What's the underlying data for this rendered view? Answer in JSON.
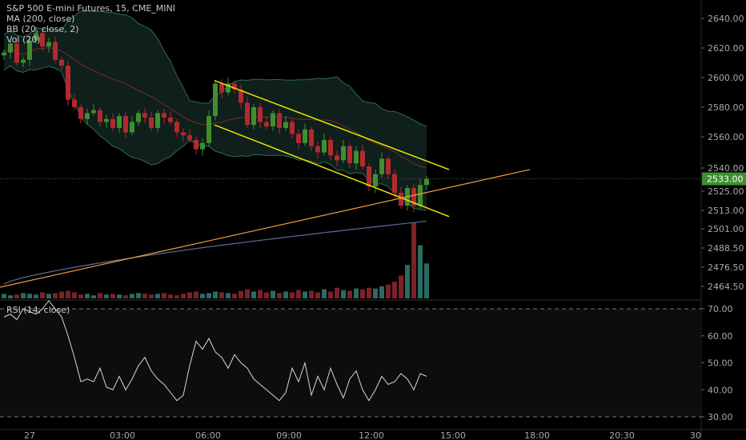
{
  "legend": {
    "line1": "S&P 500 E-mini Futures, 15, CME_MINI",
    "line2": "MA (200, close)",
    "line3": "BB (20, close, 2)",
    "line4": "Vol (20)"
  },
  "rsi_legend": "RSI (14, close)",
  "current_price_label": "2533.00",
  "colors": {
    "up": "#3f8f2f",
    "down": "#b22a2e",
    "vol_up": "#2a6b62",
    "vol_down": "#7a2228",
    "trendline": "#e6e600",
    "support": "#f0a040",
    "ma": "#5c6e99",
    "bb_basis": "#7a2b2b",
    "bb_band": "#2f6b5a",
    "price_tag_bg": "#3f8f2f"
  },
  "chart_data": [
    {
      "type": "candlestick",
      "title": "S&P 500 E-mini Futures, 15, CME_MINI",
      "y_ticks": [
        "2640.00",
        "2620.00",
        "2600.00",
        "2580.00",
        "2560.00",
        "2540.00",
        "2525.00",
        "2513.00",
        "2501.00",
        "2488.50",
        "2476.50",
        "2464.50"
      ],
      "x_ticks": [
        "27",
        "03:00",
        "06:00",
        "09:00",
        "12:00",
        "15:00",
        "18:00",
        "20:30",
        "30"
      ],
      "last_price": 2533.0,
      "closes": [
        2617,
        2623,
        2610,
        2612,
        2625,
        2630,
        2621,
        2624,
        2612,
        2608,
        2585,
        2580,
        2572,
        2576,
        2578,
        2570,
        2572,
        2566,
        2574,
        2563,
        2570,
        2576,
        2573,
        2566,
        2576,
        2573,
        2570,
        2563,
        2561,
        2558,
        2552,
        2556,
        2574,
        2596,
        2590,
        2596,
        2592,
        2583,
        2568,
        2580,
        2570,
        2567,
        2576,
        2566,
        2570,
        2562,
        2556,
        2565,
        2554,
        2550,
        2558,
        2548,
        2545,
        2554,
        2543,
        2551,
        2541,
        2528,
        2536,
        2546,
        2536,
        2524,
        2516,
        2527,
        2516,
        2529,
        2533
      ]
    },
    {
      "type": "line",
      "name": "RSI (14, close)",
      "y_ticks": [
        "70.00",
        "60.00",
        "50.00",
        "40.00",
        "30.00"
      ],
      "levels": [
        70,
        30
      ],
      "values": [
        67,
        68,
        66,
        70,
        69,
        68,
        70,
        73,
        70,
        67,
        60,
        52,
        43,
        44,
        43,
        48,
        41,
        40,
        45,
        40,
        44,
        49,
        52,
        47,
        44,
        42,
        39,
        36,
        38,
        49,
        58,
        55,
        59,
        54,
        52,
        48,
        53,
        50,
        48,
        44,
        42,
        40,
        38,
        36,
        39,
        48,
        43,
        50,
        38,
        45,
        40,
        48,
        42,
        37,
        44,
        47,
        40,
        36,
        40,
        45,
        42,
        43,
        46,
        44,
        40,
        46,
        45
      ]
    },
    {
      "type": "bar",
      "name": "Vol (20)",
      "values": [
        6,
        4,
        5,
        7,
        6,
        5,
        8,
        6,
        7,
        9,
        10,
        8,
        5,
        6,
        4,
        7,
        5,
        6,
        5,
        4,
        6,
        7,
        6,
        5,
        6,
        7,
        5,
        4,
        6,
        8,
        9,
        6,
        7,
        9,
        8,
        7,
        6,
        10,
        12,
        9,
        11,
        8,
        10,
        7,
        9,
        8,
        11,
        9,
        10,
        8,
        12,
        9,
        14,
        11,
        10,
        13,
        12,
        14,
        13,
        16,
        18,
        22,
        30,
        44,
        100,
        70,
        46
      ]
    }
  ]
}
